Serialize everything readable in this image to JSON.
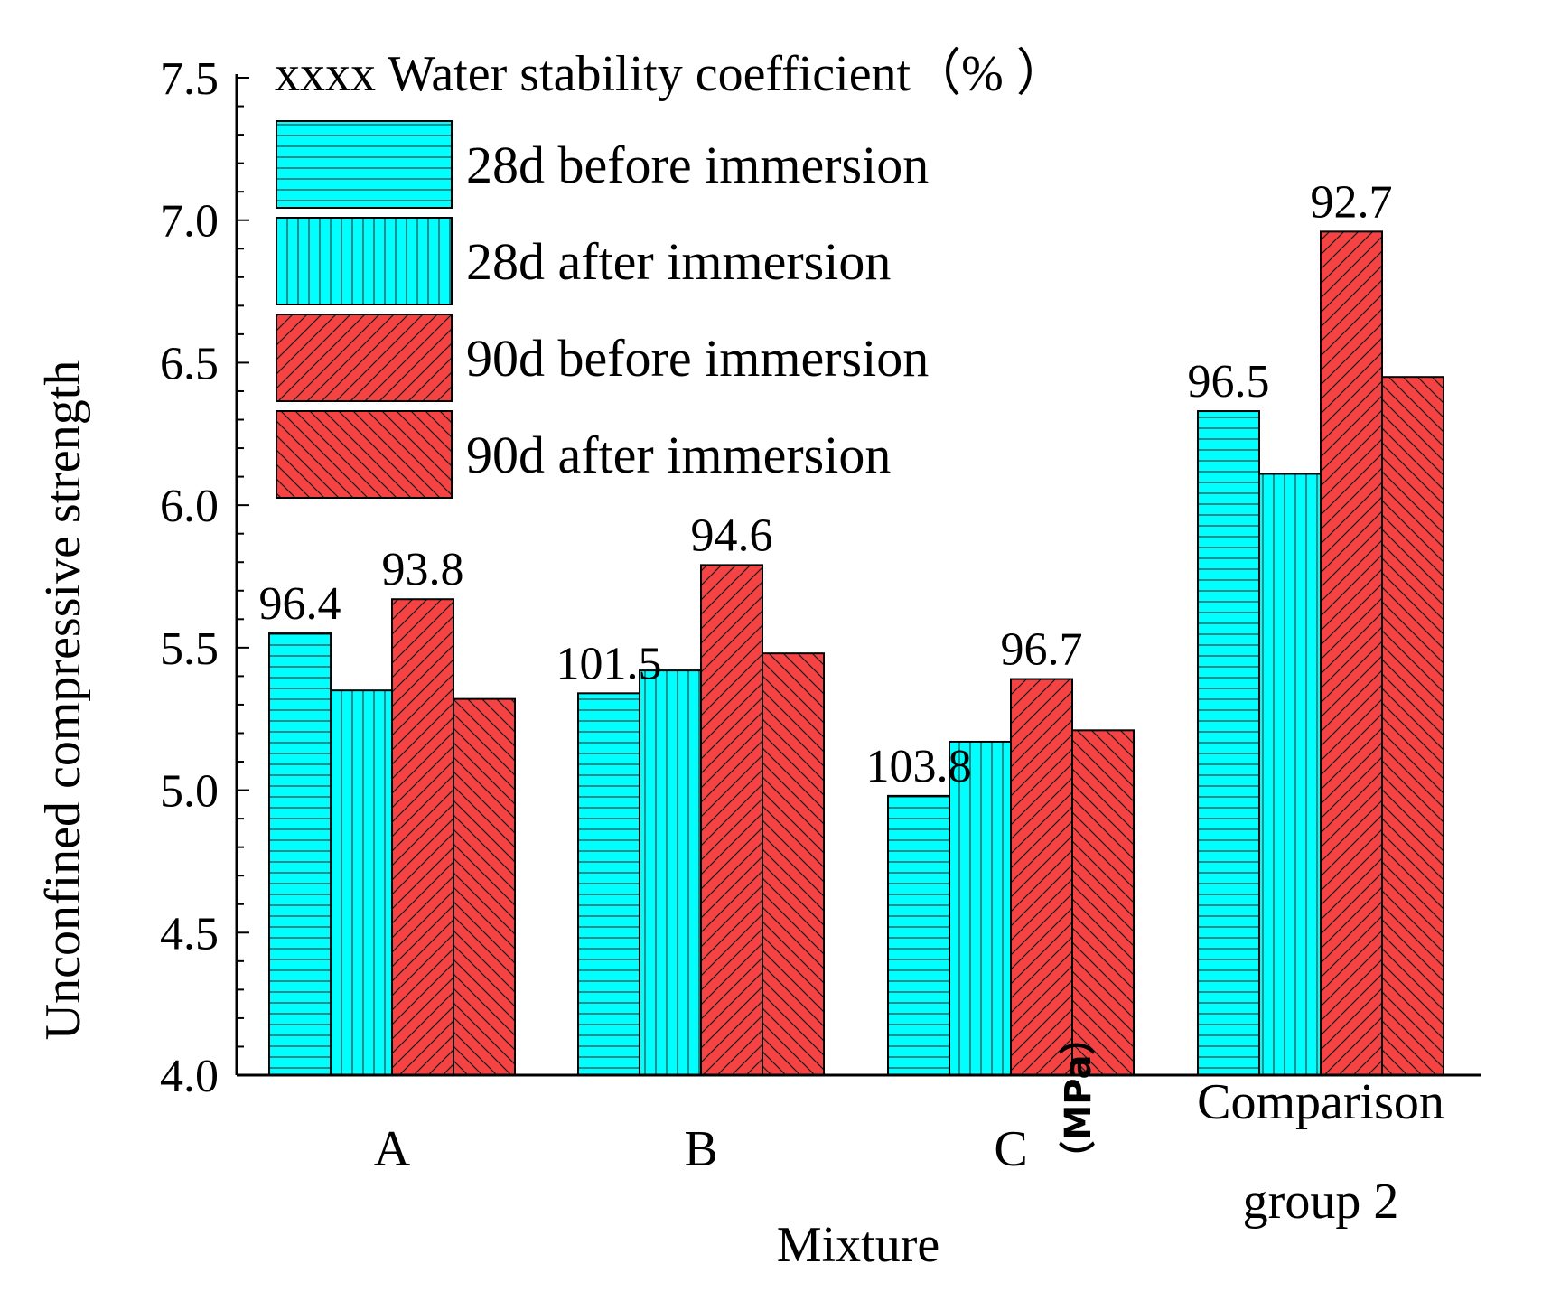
{
  "chart_data": {
    "type": "bar",
    "title": "",
    "xlabel": "Mixture",
    "ylabel": "Unconfined compressive strength",
    "ylabel_unit_fragment": "（MPa）",
    "ylim": [
      4.0,
      7.5
    ],
    "y_ticks": [
      "4.0",
      "4.5",
      "5.0",
      "5.5",
      "6.0",
      "6.5",
      "7.0",
      "7.5"
    ],
    "categories": [
      "A",
      "B",
      "C",
      "Comparison group 2"
    ],
    "category_label_lines": [
      [
        "A"
      ],
      [
        "B"
      ],
      [
        "C"
      ],
      [
        "Comparison",
        "group 2"
      ]
    ],
    "legend_title": "xxxx Water stability coefficient（% ）",
    "legend_position": "top-left",
    "series": [
      {
        "name": "28d before immersion",
        "color": "#00ffff",
        "pattern": "horizontal",
        "values": [
          5.55,
          5.34,
          4.98,
          6.33
        ]
      },
      {
        "name": "28d after immersion",
        "color": "#00ffff",
        "pattern": "vertical",
        "values": [
          5.35,
          5.42,
          5.17,
          6.11
        ]
      },
      {
        "name": "90d before immersion",
        "color": "#f54242",
        "pattern": "forward-diagonal",
        "values": [
          5.67,
          5.79,
          5.39,
          6.96
        ]
      },
      {
        "name": "90d after immersion",
        "color": "#f54242",
        "pattern": "back-diagonal",
        "values": [
          5.32,
          5.48,
          5.21,
          6.45
        ]
      }
    ],
    "annotations": [
      {
        "category": "A",
        "series": "28d before immersion",
        "text": "96.4"
      },
      {
        "category": "A",
        "series": "90d before immersion",
        "text": "93.8"
      },
      {
        "category": "B",
        "series": "28d before immersion",
        "text": "101.5"
      },
      {
        "category": "B",
        "series": "90d before immersion",
        "text": "94.6"
      },
      {
        "category": "C",
        "series": "28d before immersion",
        "text": "103.8"
      },
      {
        "category": "C",
        "series": "90d before immersion",
        "text": "96.7"
      },
      {
        "category": "Comparison group 2",
        "series": "28d before immersion",
        "text": "96.5"
      },
      {
        "category": "Comparison group 2",
        "series": "90d before immersion",
        "text": "92.7"
      }
    ]
  }
}
